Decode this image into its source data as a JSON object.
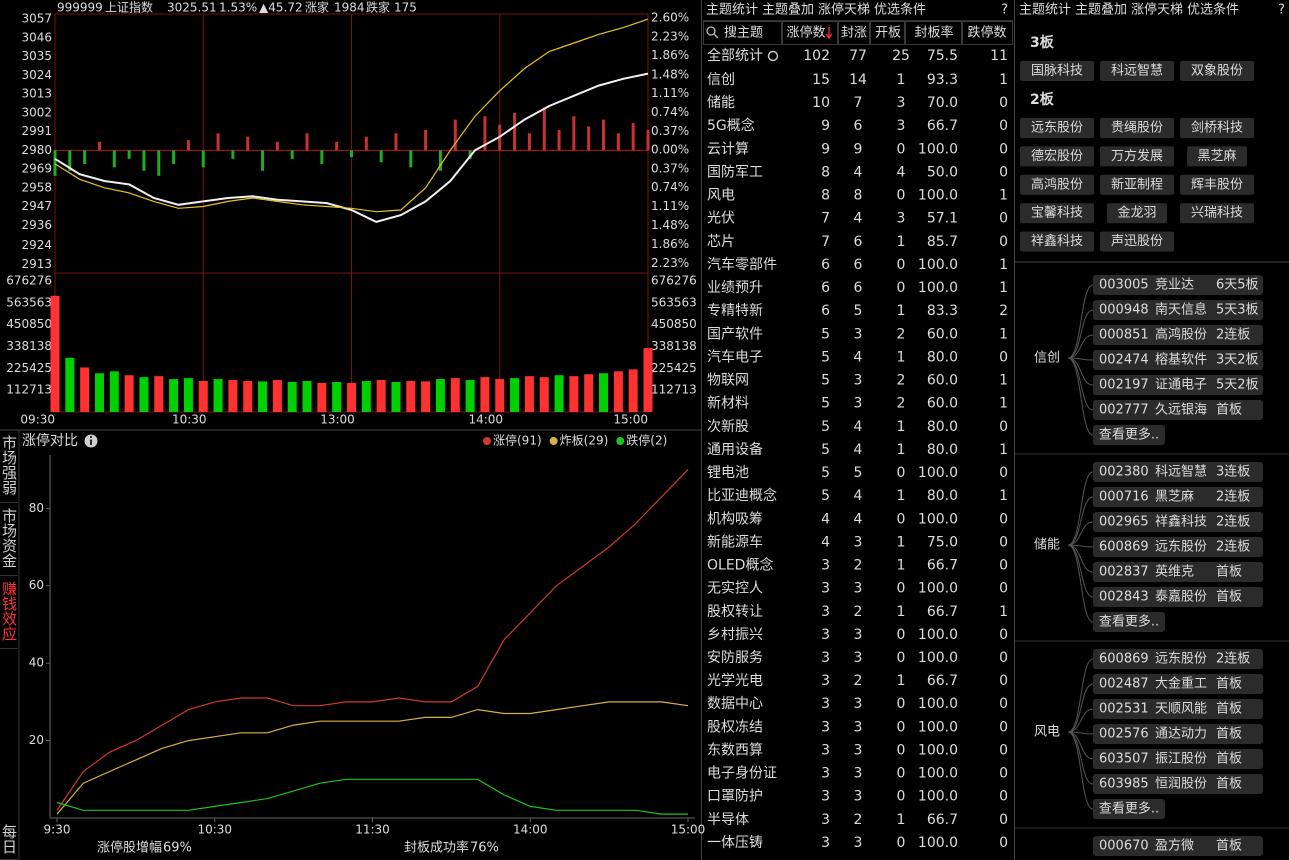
{
  "index_header": {
    "code": "999999",
    "name": "上证指数",
    "price": "3025.51",
    "pct": "1.53%",
    "change": "▲45.72",
    "up_label": "涨家",
    "up_count": "1984",
    "down_label": "跌家",
    "down_count": "175"
  },
  "chart_data": [
    {
      "type": "line",
      "x": [
        0,
        10,
        20,
        30,
        40,
        50,
        60,
        70,
        80,
        90,
        100,
        110,
        120,
        130,
        140,
        150,
        160,
        170,
        180,
        190,
        200,
        210,
        220,
        230,
        240
      ],
      "xlim": [
        0,
        240
      ],
      "xticks": [
        {
          "value": 0,
          "label": "09:30"
        },
        {
          "value": 60,
          "label": "10:30"
        },
        {
          "value": 120,
          "label": "13:00"
        },
        {
          "value": 180,
          "label": "14:00"
        },
        {
          "value": 240,
          "label": "15:00"
        }
      ],
      "ylim": [
        2908,
        3060
      ],
      "yticks": [
        3057,
        3046,
        3035,
        3024,
        3013,
        3002,
        2991,
        2980,
        2969,
        2958,
        2947,
        2936,
        2924,
        2913
      ],
      "y2lim": [
        -2.42,
        2.68
      ],
      "y2ticks": [
        {
          "value": 2.6,
          "label": "2.60%"
        },
        {
          "value": 2.23,
          "label": "2.23%"
        },
        {
          "value": 1.86,
          "label": "1.86%"
        },
        {
          "value": 1.48,
          "label": "1.48%"
        },
        {
          "value": 1.11,
          "label": "1.11%"
        },
        {
          "value": 0.74,
          "label": "0.74%"
        },
        {
          "value": 0.37,
          "label": "0.37%"
        },
        {
          "value": 0,
          "label": "0.00%"
        },
        {
          "value": -0.37,
          "label": "0.37%"
        },
        {
          "value": -0.74,
          "label": "0.74%"
        },
        {
          "value": -1.11,
          "label": "1.11%"
        },
        {
          "value": -1.48,
          "label": "1.48%"
        },
        {
          "value": -1.86,
          "label": "1.86%"
        },
        {
          "value": -2.23,
          "label": "2.23%"
        }
      ],
      "series": [
        {
          "color": "#f0f0f0",
          "values": [
            2975,
            2966,
            2962,
            2960,
            2952,
            2948,
            2950,
            2952,
            2953,
            2951,
            2950,
            2949,
            2945,
            2938,
            2942,
            2950,
            2962,
            2980,
            2988,
            2998,
            3006,
            3012,
            3018,
            3022,
            3025
          ]
        },
        {
          "color": "#e6c31e",
          "values": [
            2972,
            2963,
            2958,
            2955,
            2950,
            2946,
            2947,
            2950,
            2952,
            2950,
            2948,
            2947,
            2946,
            2944,
            2945,
            2958,
            2980,
            3000,
            3015,
            3028,
            3038,
            3043,
            3048,
            3052,
            3057
          ]
        }
      ],
      "bars": {
        "base": 2980,
        "up_color": "#c83232",
        "down_color": "#1fae1f",
        "x": [
          0,
          6,
          12,
          18,
          24,
          30,
          36,
          42,
          48,
          54,
          60,
          66,
          72,
          78,
          84,
          90,
          96,
          102,
          108,
          114,
          120,
          126,
          132,
          138,
          144,
          150,
          156,
          162,
          168,
          174,
          180,
          186,
          192,
          198,
          204,
          210,
          216,
          222,
          228,
          234,
          240
        ],
        "values": [
          2965,
          2968,
          2972,
          2985,
          2970,
          2975,
          2968,
          2965,
          2972,
          2986,
          2970,
          2990,
          2975,
          2988,
          2968,
          2985,
          2975,
          2990,
          2972,
          2985,
          2976,
          2988,
          2973,
          2990,
          2970,
          2992,
          2968,
          2998,
          2975,
          3000,
          2995,
          3002,
          2990,
          3005,
          2992,
          3000,
          2994,
          2998,
          2990,
          2996,
          2992
        ]
      }
    },
    {
      "type": "bar",
      "x": [
        0,
        6,
        12,
        18,
        24,
        30,
        36,
        42,
        48,
        54,
        60,
        66,
        72,
        78,
        84,
        90,
        96,
        102,
        108,
        114,
        120,
        126,
        132,
        138,
        144,
        150,
        156,
        162,
        168,
        174,
        180,
        186,
        192,
        198,
        204,
        210,
        216,
        222,
        228,
        234,
        240
      ],
      "xlim": [
        0,
        240
      ],
      "ylim": [
        0,
        717600
      ],
      "yticks": [
        676276,
        563563,
        450850,
        338138,
        225425,
        112713
      ],
      "y2lim": [
        0,
        717600
      ],
      "y2ticks": [
        676276,
        563563,
        450850,
        338138,
        225425,
        112713
      ],
      "values": [
        600000,
        280000,
        230000,
        200000,
        210000,
        190000,
        180000,
        185000,
        170000,
        175000,
        160000,
        170000,
        165000,
        160000,
        158000,
        165000,
        155000,
        160000,
        150000,
        155000,
        150000,
        160000,
        165000,
        155000,
        160000,
        158000,
        170000,
        175000,
        165000,
        180000,
        170000,
        175000,
        185000,
        180000,
        190000,
        185000,
        195000,
        200000,
        210000,
        220000,
        330000
      ],
      "colors": [
        "#ff3232",
        "#00d000",
        "#ff3232",
        "#00d000",
        "#00d000",
        "#ff3232",
        "#00d000",
        "#ff3232",
        "#00d000",
        "#00d000",
        "#ff3232",
        "#00d000",
        "#ff3232",
        "#ff3232",
        "#00d000",
        "#ff3232",
        "#00d000",
        "#00d000",
        "#ff3232",
        "#00d000",
        "#ff3232",
        "#00d000",
        "#ff3232",
        "#00d000",
        "#ff3232",
        "#ff3232",
        "#00d000",
        "#ff3232",
        "#00d000",
        "#ff3232",
        "#ff3232",
        "#00d000",
        "#ff3232",
        "#ff3232",
        "#00d000",
        "#ff3232",
        "#ff3232",
        "#00d000",
        "#ff3232",
        "#ff3232",
        "#ff3232"
      ]
    },
    {
      "type": "line",
      "title": "涨停对比",
      "x": [
        0,
        10,
        20,
        30,
        40,
        50,
        60,
        70,
        80,
        90,
        100,
        110,
        120,
        130,
        140,
        150,
        160,
        170,
        180,
        190,
        200,
        210,
        220,
        230,
        240
      ],
      "xlim": [
        0,
        240
      ],
      "xticks": [
        {
          "value": 0,
          "label": "9:30"
        },
        {
          "value": 60,
          "label": "10:30"
        },
        {
          "value": 120,
          "label": "11:30"
        },
        {
          "value": 180,
          "label": "14:00"
        },
        {
          "value": 240,
          "label": "15:00"
        }
      ],
      "ylim": [
        0,
        93
      ],
      "yticks": [
        20,
        40,
        60,
        80
      ],
      "series": [
        {
          "name": "涨停(91)",
          "color": "#d03a2a",
          "values": [
            2,
            12,
            17,
            20,
            24,
            28,
            30,
            31,
            31,
            29,
            29,
            30,
            30,
            31,
            30,
            30,
            34,
            46,
            53,
            60,
            65,
            70,
            76,
            83,
            90
          ]
        },
        {
          "name": "炸板(29)",
          "color": "#d8b04a",
          "values": [
            1,
            9,
            12,
            15,
            18,
            20,
            21,
            22,
            22,
            24,
            25,
            25,
            25,
            25,
            26,
            26,
            28,
            27,
            27,
            28,
            29,
            30,
            30,
            30,
            29
          ]
        },
        {
          "name": "跌停(2)",
          "color": "#22c022",
          "values": [
            4,
            2,
            2,
            2,
            2,
            2,
            3,
            4,
            5,
            7,
            9,
            10,
            10,
            10,
            10,
            10,
            10,
            6,
            3,
            2,
            2,
            2,
            2,
            1,
            1
          ]
        }
      ]
    }
  ],
  "side_tabs": {
    "items": [
      "市场强弱",
      "市场资金",
      "赚钱效应",
      "每日"
    ],
    "active": 2
  },
  "stats": [
    {
      "label": "涨停股增幅",
      "value": "69%"
    },
    {
      "label": "封板成功率",
      "value": "76%"
    }
  ],
  "theme_table": {
    "tabs": [
      "主题统计",
      "主题叠加",
      "涨停天梯",
      "优选条件",
      "?"
    ],
    "active": 0,
    "columns": [
      "搜主题",
      "涨停数",
      "封涨",
      "开板",
      "封板率",
      "跌停数"
    ],
    "summary": [
      "全部统计",
      "102",
      "77",
      "25",
      "75.5",
      "11"
    ],
    "rows": [
      [
        "信创",
        "15",
        "14",
        "1",
        "93.3",
        "1"
      ],
      [
        "储能",
        "10",
        "7",
        "3",
        "70.0",
        "0"
      ],
      [
        "5G概念",
        "9",
        "6",
        "3",
        "66.7",
        "0"
      ],
      [
        "云计算",
        "9",
        "9",
        "0",
        "100.0",
        "0"
      ],
      [
        "国防军工",
        "8",
        "4",
        "4",
        "50.0",
        "0"
      ],
      [
        "风电",
        "8",
        "8",
        "0",
        "100.0",
        "1"
      ],
      [
        "光伏",
        "7",
        "4",
        "3",
        "57.1",
        "0"
      ],
      [
        "芯片",
        "7",
        "6",
        "1",
        "85.7",
        "0"
      ],
      [
        "汽车零部件",
        "6",
        "6",
        "0",
        "100.0",
        "1"
      ],
      [
        "业绩预升",
        "6",
        "6",
        "0",
        "100.0",
        "1"
      ],
      [
        "专精特新",
        "6",
        "5",
        "1",
        "83.3",
        "2"
      ],
      [
        "国产软件",
        "5",
        "3",
        "2",
        "60.0",
        "1"
      ],
      [
        "汽车电子",
        "5",
        "4",
        "1",
        "80.0",
        "0"
      ],
      [
        "物联网",
        "5",
        "3",
        "2",
        "60.0",
        "1"
      ],
      [
        "新材料",
        "5",
        "3",
        "2",
        "60.0",
        "1"
      ],
      [
        "次新股",
        "5",
        "4",
        "1",
        "80.0",
        "0"
      ],
      [
        "通用设备",
        "5",
        "4",
        "1",
        "80.0",
        "1"
      ],
      [
        "锂电池",
        "5",
        "5",
        "0",
        "100.0",
        "0"
      ],
      [
        "比亚迪概念",
        "5",
        "4",
        "1",
        "80.0",
        "1"
      ],
      [
        "机构吸筹",
        "4",
        "4",
        "0",
        "100.0",
        "0"
      ],
      [
        "新能源车",
        "4",
        "3",
        "1",
        "75.0",
        "0"
      ],
      [
        "OLED概念",
        "3",
        "2",
        "1",
        "66.7",
        "0"
      ],
      [
        "无实控人",
        "3",
        "3",
        "0",
        "100.0",
        "0"
      ],
      [
        "股权转让",
        "3",
        "2",
        "1",
        "66.7",
        "1"
      ],
      [
        "乡村振兴",
        "3",
        "3",
        "0",
        "100.0",
        "0"
      ],
      [
        "安防服务",
        "3",
        "3",
        "0",
        "100.0",
        "0"
      ],
      [
        "光学光电",
        "3",
        "2",
        "1",
        "66.7",
        "0"
      ],
      [
        "数据中心",
        "3",
        "3",
        "0",
        "100.0",
        "0"
      ],
      [
        "股权冻结",
        "3",
        "3",
        "0",
        "100.0",
        "0"
      ],
      [
        "东数西算",
        "3",
        "3",
        "0",
        "100.0",
        "0"
      ],
      [
        "电子身份证",
        "3",
        "3",
        "0",
        "100.0",
        "0"
      ],
      [
        "口罩防护",
        "3",
        "3",
        "0",
        "100.0",
        "0"
      ],
      [
        "半导体",
        "3",
        "2",
        "1",
        "66.7",
        "0"
      ],
      [
        "一体压铸",
        "3",
        "3",
        "0",
        "100.0",
        "0"
      ]
    ]
  },
  "ladder": {
    "tabs": [
      "主题统计",
      "主题叠加",
      "涨停天梯",
      "优选条件",
      "?"
    ],
    "active": 2,
    "levels": [
      {
        "title": "3板",
        "stocks": [
          "国脉科技",
          "科远智慧",
          "双象股份"
        ]
      },
      {
        "title": "2板",
        "stocks": [
          "远东股份",
          "贵绳股份",
          "剑桥科技",
          "德宏股份",
          "万方发展",
          "黑芝麻",
          "高鸿股份",
          "新亚制程",
          "辉丰股份",
          "宝馨科技",
          "金龙羽",
          "兴瑞科技",
          "祥鑫科技",
          "声迅股份"
        ]
      }
    ],
    "groups": [
      {
        "name": "信创",
        "items": [
          {
            "code": "003005",
            "name": "竞业达",
            "board": "6天5板"
          },
          {
            "code": "000948",
            "name": "南天信息",
            "board": "5天3板"
          },
          {
            "code": "000851",
            "name": "高鸿股份",
            "board": "2连板"
          },
          {
            "code": "002474",
            "name": "榕基软件",
            "board": "3天2板"
          },
          {
            "code": "002197",
            "name": "证通电子",
            "board": "5天2板"
          },
          {
            "code": "002777",
            "name": "久远银海",
            "board": "首板"
          }
        ],
        "more": "查看更多.."
      },
      {
        "name": "储能",
        "items": [
          {
            "code": "002380",
            "name": "科远智慧",
            "board": "3连板"
          },
          {
            "code": "000716",
            "name": "黑芝麻",
            "board": "2连板"
          },
          {
            "code": "002965",
            "name": "祥鑫科技",
            "board": "2连板"
          },
          {
            "code": "600869",
            "name": "远东股份",
            "board": "2连板"
          },
          {
            "code": "002837",
            "name": "英维克",
            "board": "首板"
          },
          {
            "code": "002843",
            "name": "泰嘉股份",
            "board": "首板"
          }
        ],
        "more": "查看更多.."
      },
      {
        "name": "风电",
        "items": [
          {
            "code": "600869",
            "name": "远东股份",
            "board": "2连板"
          },
          {
            "code": "002487",
            "name": "大金重工",
            "board": "首板"
          },
          {
            "code": "002531",
            "name": "天顺风能",
            "board": "首板"
          },
          {
            "code": "002576",
            "name": "通达动力",
            "board": "首板"
          },
          {
            "code": "603507",
            "name": "振江股份",
            "board": "首板"
          },
          {
            "code": "603985",
            "name": "恒润股份",
            "board": "首板"
          }
        ],
        "more": "查看更多.."
      },
      {
        "items": [
          {
            "code": "000670",
            "name": "盈方微",
            "board": "首板"
          }
        ]
      }
    ]
  }
}
